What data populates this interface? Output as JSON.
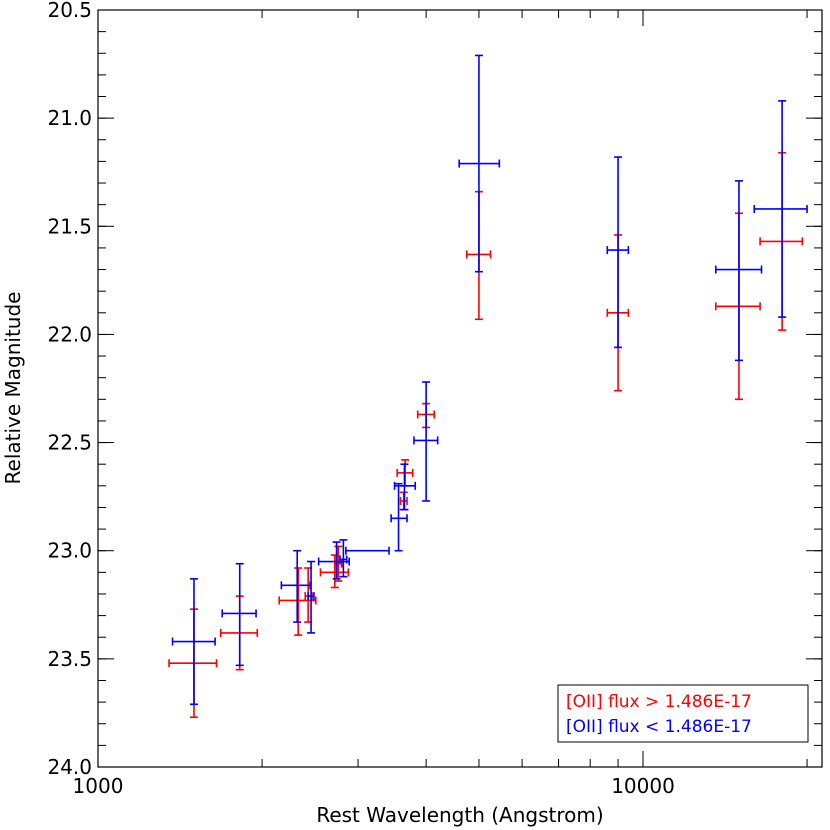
{
  "chart_data": {
    "type": "scatter",
    "xlabel": "Rest Wavelength (Angstrom)",
    "ylabel": "Relative Magnitude",
    "xscale": "log",
    "xlim": [
      1000,
      20000
    ],
    "ylim": [
      24.0,
      20.5
    ],
    "y_inverted": true,
    "x_ticks": [
      {
        "value": 1000,
        "label": "1000"
      },
      {
        "value": 10000,
        "label": "10000"
      }
    ],
    "y_ticks": [
      {
        "value": 20.5,
        "label": "20.5"
      },
      {
        "value": 21.0,
        "label": "21.0"
      },
      {
        "value": 21.5,
        "label": "21.5"
      },
      {
        "value": 22.0,
        "label": "22.0"
      },
      {
        "value": 22.5,
        "label": "22.5"
      },
      {
        "value": 23.0,
        "label": "23.0"
      },
      {
        "value": 23.5,
        "label": "23.5"
      },
      {
        "value": 24.0,
        "label": "24.0"
      }
    ],
    "grid": false,
    "legend_position": "bottom-right",
    "series": [
      {
        "name": "[OII] flux > 1.486E-17",
        "color": "#ff0000",
        "points": [
          {
            "x": 1500,
            "y": 23.52,
            "xerr": [
              1350,
              1650
            ],
            "yerr": [
              23.27,
              23.77
            ]
          },
          {
            "x": 1820,
            "y": 23.38,
            "xerr": [
              1680,
              1960
            ],
            "yerr": [
              23.21,
              23.55
            ]
          },
          {
            "x": 2330,
            "y": 23.23,
            "xerr": [
              2150,
              2510
            ],
            "yerr": [
              23.08,
              23.39
            ]
          },
          {
            "x": 2430,
            "y": 23.21,
            "xerr": [
              2400,
              2470
            ],
            "yerr": [
              23.08,
              23.33
            ]
          },
          {
            "x": 2720,
            "y": 23.1,
            "xerr": [
              2560,
              2880
            ],
            "yerr": [
              23.02,
              23.17
            ]
          },
          {
            "x": 2760,
            "y": 23.06,
            "xerr": [
              2720,
              2800
            ],
            "yerr": [
              22.98,
              23.14
            ]
          },
          {
            "x": 3640,
            "y": 22.77,
            "xerr": [
              3590,
              3690
            ],
            "yerr": [
              22.73,
              22.81
            ]
          },
          {
            "x": 3660,
            "y": 22.64,
            "xerr": [
              3540,
              3780
            ],
            "yerr": [
              22.58,
              22.7
            ]
          },
          {
            "x": 4000,
            "y": 22.37,
            "xerr": [
              3860,
              4140
            ],
            "yerr": [
              22.32,
              22.43
            ]
          },
          {
            "x": 5000,
            "y": 21.63,
            "xerr": [
              4750,
              5250
            ],
            "yerr": [
              21.34,
              21.93
            ]
          },
          {
            "x": 9000,
            "y": 21.9,
            "xerr": [
              8600,
              9400
            ],
            "yerr": [
              21.54,
              22.26
            ]
          },
          {
            "x": 15000,
            "y": 21.87,
            "xerr": [
              13600,
              16400
            ],
            "yerr": [
              21.44,
              22.3
            ]
          },
          {
            "x": 18000,
            "y": 21.57,
            "xerr": [
              16400,
              19600
            ],
            "yerr": [
              21.16,
              21.98
            ]
          }
        ]
      },
      {
        "name": "[OII] flux < 1.486E-17",
        "color": "#0000ff",
        "points": [
          {
            "x": 1500,
            "y": 23.42,
            "xerr": [
              1370,
              1640
            ],
            "yerr": [
              23.13,
              23.71
            ]
          },
          {
            "x": 1820,
            "y": 23.29,
            "xerr": [
              1690,
              1950
            ],
            "yerr": [
              23.06,
              23.53
            ]
          },
          {
            "x": 2320,
            "y": 23.16,
            "xerr": [
              2170,
              2450
            ],
            "yerr": [
              23.0,
              23.33
            ]
          },
          {
            "x": 2460,
            "y": 23.21,
            "xerr": [
              2430,
              2490
            ],
            "yerr": [
              23.05,
              23.38
            ]
          },
          {
            "x": 2740,
            "y": 23.05,
            "xerr": [
              2540,
              2890
            ],
            "yerr": [
              22.96,
              23.13
            ]
          },
          {
            "x": 2820,
            "y": 23.04,
            "xerr": [
              2780,
              2860
            ],
            "yerr": [
              22.95,
              23.12
            ]
          },
          {
            "x": 3000,
            "y": 23.0,
            "xerr": [
              2850,
              3420
            ],
            "yerr": [
              23.0,
              23.0
            ]
          },
          {
            "x": 3560,
            "y": 22.85,
            "xerr": [
              3450,
              3690
            ],
            "yerr": [
              22.69,
              23.0
            ]
          },
          {
            "x": 3650,
            "y": 22.7,
            "xerr": [
              3500,
              3820
            ],
            "yerr": [
              22.6,
              22.81
            ]
          },
          {
            "x": 4000,
            "y": 22.49,
            "xerr": [
              3800,
              4200
            ],
            "yerr": [
              22.22,
              22.77
            ]
          },
          {
            "x": 5000,
            "y": 21.21,
            "xerr": [
              4600,
              5450
            ],
            "yerr": [
              20.71,
              21.71
            ]
          },
          {
            "x": 9000,
            "y": 21.61,
            "xerr": [
              8600,
              9400
            ],
            "yerr": [
              21.18,
              22.06
            ]
          },
          {
            "x": 15000,
            "y": 21.7,
            "xerr": [
              13600,
              16500
            ],
            "yerr": [
              21.29,
              22.12
            ]
          },
          {
            "x": 18000,
            "y": 21.42,
            "xerr": [
              16000,
              20000
            ],
            "yerr": [
              20.92,
              21.92
            ]
          }
        ]
      }
    ]
  }
}
